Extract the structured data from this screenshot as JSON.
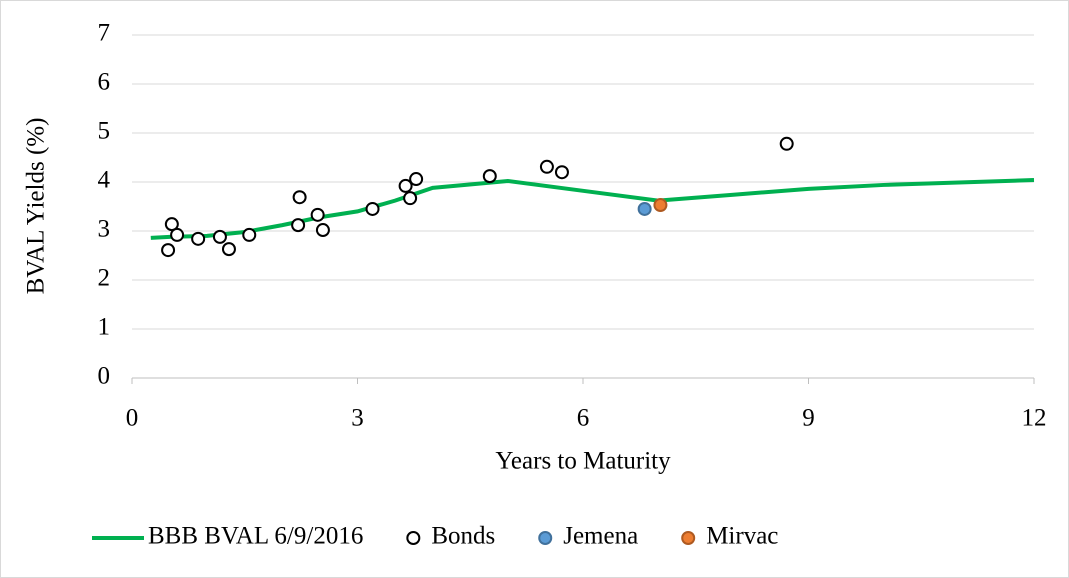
{
  "chart_data": {
    "type": "scatter",
    "x_label": "Years to Maturity",
    "y_label": "BVAL Yields (%)",
    "xlim": [
      0,
      12
    ],
    "xticks": [
      0,
      3,
      6,
      9,
      12
    ],
    "ylim": [
      0,
      7
    ],
    "yticks": [
      0,
      1,
      2,
      3,
      4,
      5,
      6,
      7
    ],
    "grid": true,
    "legend": "bottom",
    "series": [
      {
        "name": "BBB BVAL 6/9/2016",
        "type": "line",
        "color": "#00b050",
        "x": [
          0.25,
          0.5,
          1,
          1.5,
          2,
          2.5,
          3,
          3.5,
          4,
          5,
          6,
          7,
          8,
          9,
          10,
          11,
          12
        ],
        "values": [
          2.86,
          2.88,
          2.9,
          2.98,
          3.12,
          3.28,
          3.4,
          3.62,
          3.88,
          4.02,
          3.82,
          3.62,
          3.74,
          3.86,
          3.94,
          3.99,
          4.04
        ]
      },
      {
        "name": "Bonds",
        "type": "scatter",
        "color": "#000000",
        "marker_fill": "#ffffff",
        "x": [
          0.48,
          0.53,
          0.6,
          0.88,
          1.17,
          1.29,
          1.56,
          2.21,
          2.23,
          2.47,
          2.54,
          3.2,
          3.64,
          3.7,
          3.78,
          4.76,
          5.52,
          5.72,
          8.71
        ],
        "values": [
          2.61,
          3.14,
          2.92,
          2.84,
          2.88,
          2.63,
          2.92,
          3.12,
          3.69,
          3.33,
          3.02,
          3.45,
          3.92,
          3.67,
          4.06,
          4.12,
          4.31,
          4.2,
          4.78
        ]
      },
      {
        "name": "Jemena",
        "type": "scatter",
        "color": "#41719c",
        "marker_fill": "#5b9bd5",
        "x": [
          6.82
        ],
        "values": [
          3.45
        ]
      },
      {
        "name": "Mirvac",
        "type": "scatter",
        "color": "#ae5a21",
        "marker_fill": "#ed7d31",
        "x": [
          7.03
        ],
        "values": [
          3.53
        ]
      }
    ]
  }
}
